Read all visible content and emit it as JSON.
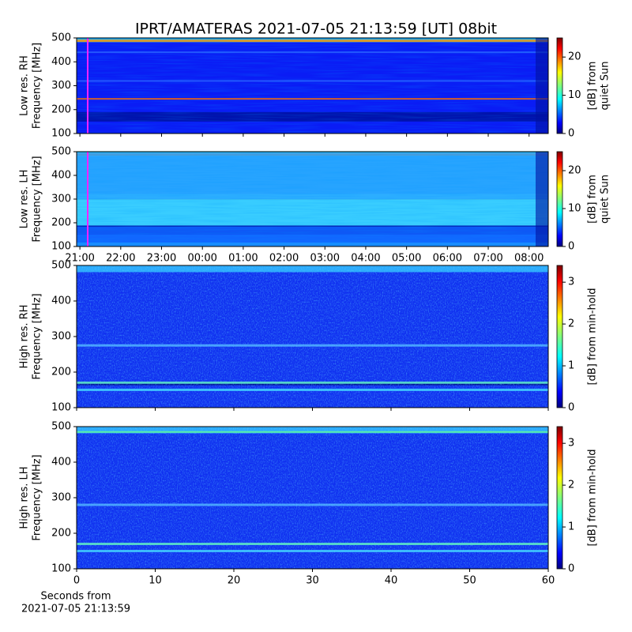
{
  "title": "IPRT/AMATERAS 2021-07-05 21:13:59 [UT]   08bit",
  "chart_data": [
    {
      "type": "heatmap",
      "ylabel": [
        "Low res. RH",
        "Frequency [MHz]"
      ],
      "ylim": [
        100,
        500
      ],
      "yticks": [
        100,
        200,
        300,
        400,
        500
      ],
      "xlim": [
        20.92,
        32.47
      ],
      "sharex": true,
      "colorbar_label": [
        "[dB] from",
        "quiet Sun"
      ],
      "clim": [
        0,
        25
      ],
      "cticks": [
        0,
        10,
        20
      ]
    },
    {
      "type": "heatmap",
      "ylabel": [
        "Low res. LH",
        "Frequency [MHz]"
      ],
      "ylim": [
        100,
        500
      ],
      "yticks": [
        100,
        200,
        300,
        400,
        500
      ],
      "xlim": [
        20.92,
        32.47
      ],
      "xticks": [
        {
          "value": 21,
          "label": "21:00"
        },
        {
          "value": 22,
          "label": "22:00"
        },
        {
          "value": 23,
          "label": "23:00"
        },
        {
          "value": 24,
          "label": "00:00"
        },
        {
          "value": 25,
          "label": "01:00"
        },
        {
          "value": 26,
          "label": "02:00"
        },
        {
          "value": 27,
          "label": "03:00"
        },
        {
          "value": 28,
          "label": "04:00"
        },
        {
          "value": 29,
          "label": "05:00"
        },
        {
          "value": 30,
          "label": "06:00"
        },
        {
          "value": 31,
          "label": "07:00"
        },
        {
          "value": 32,
          "label": "08:00"
        }
      ],
      "colorbar_label": [
        "[dB] from",
        "quiet Sun"
      ],
      "clim": [
        0,
        25
      ],
      "cticks": [
        0,
        10,
        20
      ]
    },
    {
      "type": "heatmap",
      "ylabel": [
        "High res. RH",
        "Frequency [MHz]"
      ],
      "ylim": [
        100,
        500
      ],
      "yticks": [
        100,
        200,
        300,
        400,
        500
      ],
      "xlim": [
        0,
        60
      ],
      "sharex": true,
      "colorbar_label": [
        "[dB] from min-hold"
      ],
      "clim": [
        0,
        3.4
      ],
      "cticks": [
        0,
        1,
        2,
        3
      ]
    },
    {
      "type": "heatmap",
      "ylabel": [
        "High res. LH",
        "Frequency [MHz]"
      ],
      "ylim": [
        100,
        500
      ],
      "yticks": [
        100,
        200,
        300,
        400,
        500
      ],
      "xlim": [
        0,
        60
      ],
      "xticks": [
        0,
        10,
        20,
        30,
        40,
        50,
        60
      ],
      "xlabel": [
        "Seconds from",
        "2021-07-05 21:13:59"
      ],
      "colorbar_label": [
        "[dB] from min-hold"
      ],
      "clim": [
        0,
        3.4
      ],
      "cticks": [
        0,
        1,
        2,
        3
      ]
    }
  ]
}
